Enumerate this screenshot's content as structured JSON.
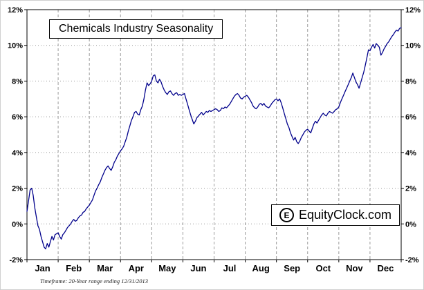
{
  "chart_data": {
    "type": "line",
    "title": "Chemicals Industry Seasonality",
    "watermark": {
      "icon": "E",
      "text": "EquityClock.com"
    },
    "footer": "Timeframe: 20-Year range ending 12/31/2013",
    "x_tick_labels": [
      "Jan",
      "Feb",
      "Mar",
      "Apr",
      "May",
      "Jun",
      "Jul",
      "Aug",
      "Sep",
      "Oct",
      "Nov",
      "Dec"
    ],
    "y_tick_labels": [
      "12%",
      "10%",
      "8%",
      "6%",
      "4%",
      "2%",
      "0%",
      "-2%"
    ],
    "y_tick_values": [
      12,
      10,
      8,
      6,
      4,
      2,
      0,
      -2
    ],
    "ylim": [
      -2,
      12
    ],
    "xlim": [
      0,
      12
    ],
    "grid": true,
    "line_color": "#00008B",
    "grid_color": "#9a9a9a",
    "series": [
      {
        "name": "Chemicals Industry Seasonality (20-Year average, ending 12/31/2013)",
        "x_unit": "months (0 = Jan 1, 12 = Dec 31)",
        "y_unit": "percent",
        "points": [
          [
            0,
            0.7
          ],
          [
            0.05,
            1.3
          ],
          [
            0.1,
            1.9
          ],
          [
            0.15,
            2.0
          ],
          [
            0.2,
            1.6
          ],
          [
            0.25,
            0.9
          ],
          [
            0.3,
            0.4
          ],
          [
            0.35,
            -0.1
          ],
          [
            0.4,
            -0.3
          ],
          [
            0.45,
            -0.7
          ],
          [
            0.5,
            -1.0
          ],
          [
            0.55,
            -1.3
          ],
          [
            0.6,
            -1.4
          ],
          [
            0.65,
            -1.1
          ],
          [
            0.7,
            -1.3
          ],
          [
            0.75,
            -1.0
          ],
          [
            0.8,
            -0.7
          ],
          [
            0.85,
            -0.9
          ],
          [
            0.9,
            -0.6
          ],
          [
            0.95,
            -0.55
          ],
          [
            1,
            -0.5
          ],
          [
            1.05,
            -0.7
          ],
          [
            1.1,
            -0.85
          ],
          [
            1.15,
            -0.6
          ],
          [
            1.2,
            -0.5
          ],
          [
            1.25,
            -0.35
          ],
          [
            1.3,
            -0.2
          ],
          [
            1.35,
            -0.1
          ],
          [
            1.4,
            0.0
          ],
          [
            1.45,
            0.15
          ],
          [
            1.5,
            0.25
          ],
          [
            1.55,
            0.15
          ],
          [
            1.6,
            0.2
          ],
          [
            1.65,
            0.35
          ],
          [
            1.7,
            0.45
          ],
          [
            1.75,
            0.5
          ],
          [
            1.8,
            0.65
          ],
          [
            1.85,
            0.7
          ],
          [
            1.9,
            0.85
          ],
          [
            1.95,
            0.95
          ],
          [
            2,
            1.05
          ],
          [
            2.05,
            1.2
          ],
          [
            2.1,
            1.35
          ],
          [
            2.15,
            1.6
          ],
          [
            2.2,
            1.85
          ],
          [
            2.25,
            2.0
          ],
          [
            2.3,
            2.2
          ],
          [
            2.35,
            2.35
          ],
          [
            2.4,
            2.6
          ],
          [
            2.45,
            2.8
          ],
          [
            2.5,
            3.0
          ],
          [
            2.55,
            3.15
          ],
          [
            2.6,
            3.25
          ],
          [
            2.65,
            3.1
          ],
          [
            2.7,
            3.0
          ],
          [
            2.75,
            3.2
          ],
          [
            2.8,
            3.45
          ],
          [
            2.85,
            3.6
          ],
          [
            2.9,
            3.8
          ],
          [
            2.95,
            3.95
          ],
          [
            3,
            4.1
          ],
          [
            3.05,
            4.2
          ],
          [
            3.1,
            4.35
          ],
          [
            3.15,
            4.6
          ],
          [
            3.2,
            4.85
          ],
          [
            3.25,
            5.2
          ],
          [
            3.3,
            5.5
          ],
          [
            3.35,
            5.8
          ],
          [
            3.4,
            6.0
          ],
          [
            3.45,
            6.25
          ],
          [
            3.5,
            6.3
          ],
          [
            3.55,
            6.15
          ],
          [
            3.6,
            6.1
          ],
          [
            3.65,
            6.4
          ],
          [
            3.7,
            6.6
          ],
          [
            3.75,
            7.0
          ],
          [
            3.8,
            7.5
          ],
          [
            3.85,
            7.9
          ],
          [
            3.9,
            7.75
          ],
          [
            3.95,
            7.85
          ],
          [
            4,
            8.0
          ],
          [
            4.05,
            8.3
          ],
          [
            4.1,
            8.35
          ],
          [
            4.15,
            8.0
          ],
          [
            4.2,
            7.9
          ],
          [
            4.25,
            8.1
          ],
          [
            4.3,
            7.95
          ],
          [
            4.35,
            7.7
          ],
          [
            4.4,
            7.5
          ],
          [
            4.45,
            7.35
          ],
          [
            4.5,
            7.25
          ],
          [
            4.55,
            7.4
          ],
          [
            4.6,
            7.45
          ],
          [
            4.65,
            7.3
          ],
          [
            4.7,
            7.2
          ],
          [
            4.75,
            7.3
          ],
          [
            4.8,
            7.35
          ],
          [
            4.85,
            7.2
          ],
          [
            4.9,
            7.25
          ],
          [
            4.95,
            7.2
          ],
          [
            5,
            7.25
          ],
          [
            5.05,
            7.3
          ],
          [
            5.1,
            7.0
          ],
          [
            5.15,
            6.7
          ],
          [
            5.2,
            6.4
          ],
          [
            5.25,
            6.1
          ],
          [
            5.3,
            5.85
          ],
          [
            5.35,
            5.6
          ],
          [
            5.4,
            5.75
          ],
          [
            5.45,
            5.95
          ],
          [
            5.5,
            6.05
          ],
          [
            5.55,
            6.15
          ],
          [
            5.6,
            6.25
          ],
          [
            5.65,
            6.1
          ],
          [
            5.7,
            6.2
          ],
          [
            5.75,
            6.3
          ],
          [
            5.8,
            6.25
          ],
          [
            5.85,
            6.35
          ],
          [
            5.9,
            6.3
          ],
          [
            5.95,
            6.35
          ],
          [
            6,
            6.4
          ],
          [
            6.05,
            6.45
          ],
          [
            6.1,
            6.4
          ],
          [
            6.15,
            6.3
          ],
          [
            6.2,
            6.35
          ],
          [
            6.25,
            6.5
          ],
          [
            6.3,
            6.45
          ],
          [
            6.35,
            6.55
          ],
          [
            6.4,
            6.5
          ],
          [
            6.45,
            6.6
          ],
          [
            6.5,
            6.7
          ],
          [
            6.55,
            6.85
          ],
          [
            6.6,
            7.0
          ],
          [
            6.65,
            7.15
          ],
          [
            6.7,
            7.25
          ],
          [
            6.75,
            7.3
          ],
          [
            6.8,
            7.2
          ],
          [
            6.85,
            7.05
          ],
          [
            6.9,
            7.0
          ],
          [
            6.95,
            7.1
          ],
          [
            7,
            7.15
          ],
          [
            7.05,
            7.2
          ],
          [
            7.1,
            7.1
          ],
          [
            7.15,
            6.95
          ],
          [
            7.2,
            6.8
          ],
          [
            7.25,
            6.6
          ],
          [
            7.3,
            6.5
          ],
          [
            7.35,
            6.45
          ],
          [
            7.4,
            6.55
          ],
          [
            7.45,
            6.7
          ],
          [
            7.5,
            6.75
          ],
          [
            7.55,
            6.65
          ],
          [
            7.6,
            6.75
          ],
          [
            7.65,
            6.6
          ],
          [
            7.7,
            6.55
          ],
          [
            7.75,
            6.5
          ],
          [
            7.8,
            6.6
          ],
          [
            7.85,
            6.75
          ],
          [
            7.9,
            6.85
          ],
          [
            7.95,
            6.95
          ],
          [
            8,
            7.0
          ],
          [
            8.05,
            6.9
          ],
          [
            8.1,
            7.0
          ],
          [
            8.15,
            6.8
          ],
          [
            8.2,
            6.5
          ],
          [
            8.25,
            6.2
          ],
          [
            8.3,
            5.9
          ],
          [
            8.35,
            5.6
          ],
          [
            8.4,
            5.4
          ],
          [
            8.45,
            5.1
          ],
          [
            8.5,
            4.9
          ],
          [
            8.55,
            4.7
          ],
          [
            8.6,
            4.85
          ],
          [
            8.65,
            4.6
          ],
          [
            8.7,
            4.5
          ],
          [
            8.75,
            4.65
          ],
          [
            8.8,
            4.85
          ],
          [
            8.85,
            5.0
          ],
          [
            8.9,
            5.15
          ],
          [
            8.95,
            5.25
          ],
          [
            9,
            5.3
          ],
          [
            9.05,
            5.2
          ],
          [
            9.1,
            5.1
          ],
          [
            9.15,
            5.35
          ],
          [
            9.2,
            5.6
          ],
          [
            9.25,
            5.75
          ],
          [
            9.3,
            5.65
          ],
          [
            9.35,
            5.8
          ],
          [
            9.4,
            5.95
          ],
          [
            9.45,
            6.1
          ],
          [
            9.5,
            6.2
          ],
          [
            9.55,
            6.1
          ],
          [
            9.6,
            6.05
          ],
          [
            9.65,
            6.2
          ],
          [
            9.7,
            6.3
          ],
          [
            9.75,
            6.25
          ],
          [
            9.8,
            6.2
          ],
          [
            9.85,
            6.3
          ],
          [
            9.9,
            6.4
          ],
          [
            9.95,
            6.45
          ],
          [
            10,
            6.55
          ],
          [
            10.05,
            6.8
          ],
          [
            10.1,
            7.0
          ],
          [
            10.15,
            7.2
          ],
          [
            10.2,
            7.4
          ],
          [
            10.25,
            7.6
          ],
          [
            10.3,
            7.8
          ],
          [
            10.35,
            8.0
          ],
          [
            10.4,
            8.2
          ],
          [
            10.45,
            8.45
          ],
          [
            10.5,
            8.2
          ],
          [
            10.55,
            7.95
          ],
          [
            10.6,
            7.8
          ],
          [
            10.65,
            7.6
          ],
          [
            10.7,
            7.9
          ],
          [
            10.75,
            8.2
          ],
          [
            10.8,
            8.5
          ],
          [
            10.85,
            8.9
          ],
          [
            10.9,
            9.3
          ],
          [
            10.95,
            9.75
          ],
          [
            11,
            9.7
          ],
          [
            11.05,
            9.9
          ],
          [
            11.1,
            10.05
          ],
          [
            11.15,
            9.85
          ],
          [
            11.2,
            10.1
          ],
          [
            11.25,
            10.0
          ],
          [
            11.3,
            9.9
          ],
          [
            11.35,
            9.45
          ],
          [
            11.4,
            9.6
          ],
          [
            11.45,
            9.8
          ],
          [
            11.5,
            9.95
          ],
          [
            11.55,
            10.1
          ],
          [
            11.6,
            10.2
          ],
          [
            11.65,
            10.35
          ],
          [
            11.7,
            10.5
          ],
          [
            11.75,
            10.6
          ],
          [
            11.8,
            10.75
          ],
          [
            11.85,
            10.85
          ],
          [
            11.9,
            10.8
          ],
          [
            11.95,
            10.95
          ],
          [
            12,
            11.0
          ]
        ]
      }
    ]
  }
}
